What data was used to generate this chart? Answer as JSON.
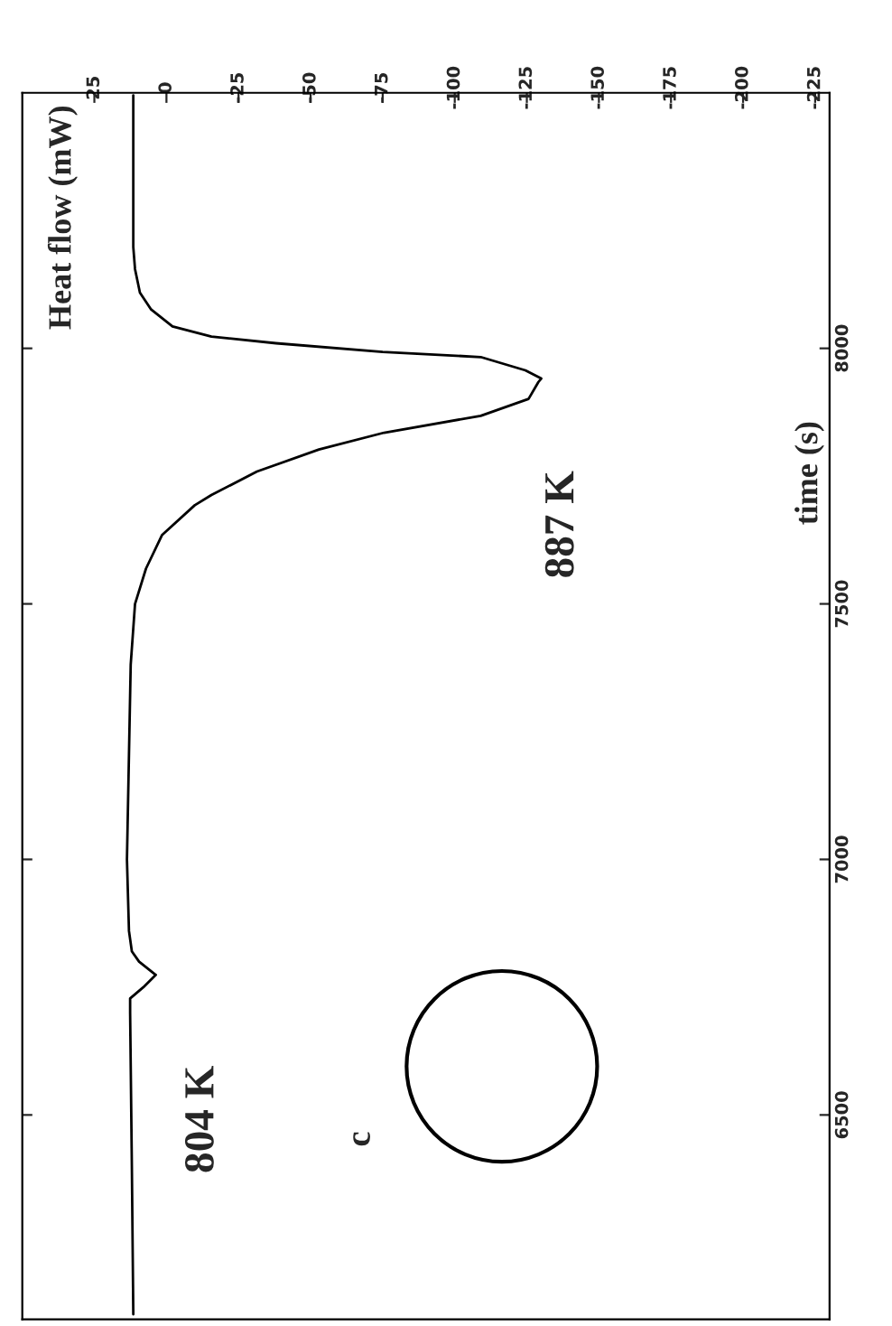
{
  "chart_data": {
    "type": "line",
    "orientation": "horizontal",
    "ylabel": "Heat flow (mW)",
    "x": [
      6110,
      6400,
      6700,
      6728,
      6750,
      6774,
      6800,
      6820,
      6860,
      7000,
      7381,
      7500,
      7569,
      7635,
      7693,
      7713,
      7759,
      7802,
      7835,
      7868,
      7901,
      7934,
      7941,
      7957,
      7983,
      7993,
      8010,
      8023,
      8043,
      8076,
      8109,
      8155,
      8198,
      8495
    ],
    "series": [
      {
        "color": "#000000",
        "values": [
          11.5,
          12.0,
          12.6,
          12.6,
          8.0,
          3.7,
          9.5,
          12.0,
          13.0,
          13.7,
          12.4,
          10.9,
          7.1,
          1.5,
          -9.8,
          -15.6,
          -31.4,
          -52.9,
          -75.5,
          -109,
          -125.6,
          -129,
          -130,
          -124.5,
          -109,
          -75,
          -38,
          -15.6,
          -2.1,
          5.3,
          9.2,
          10.9,
          11.5,
          11.5
        ]
      }
    ],
    "xlim": [
      50,
      -230
    ],
    "xticks": [
      25,
      0,
      -25,
      -50,
      -75,
      -100,
      -125,
      -150,
      -175,
      -200,
      -225
    ],
    "ylim": [
      6100,
      8500
    ],
    "yticks": [
      6500,
      7000,
      7500,
      8000
    ],
    "annotations": [
      "887 K",
      "804 K",
      "c",
      "time (s)"
    ],
    "grid": false,
    "legend": false,
    "marker": "none",
    "line_style": "solid"
  }
}
